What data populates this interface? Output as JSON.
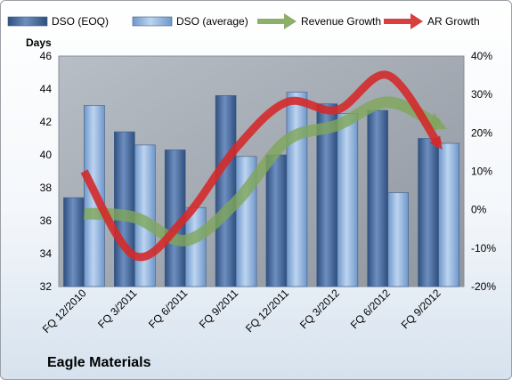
{
  "chart_data": {
    "type": "bar",
    "title": "",
    "company": "Eagle Materials",
    "ylabel": "Days",
    "categories": [
      "FQ 12/2010",
      "FQ 3/2011",
      "FQ 6/2011",
      "FQ 9/2011",
      "FQ 12/2011",
      "FQ 3/2012",
      "FQ 6/2012",
      "FQ 9/2012"
    ],
    "ylim": [
      32,
      46
    ],
    "yticks": [
      "32",
      "34",
      "36",
      "38",
      "40",
      "42",
      "44",
      "46"
    ],
    "y2lim": [
      -20,
      40
    ],
    "y2ticks": [
      "-20%",
      "-10%",
      "0%",
      "10%",
      "20%",
      "30%",
      "40%"
    ],
    "series": [
      {
        "name": "DSO (EOQ)",
        "type": "bar",
        "axis": "left",
        "color": "#4a6fa5",
        "values": [
          37.4,
          41.4,
          40.3,
          43.6,
          40.0,
          43.1,
          42.7,
          41.0
        ]
      },
      {
        "name": "DSO (average)",
        "type": "bar",
        "axis": "left",
        "color": "#8fb3de",
        "values": [
          43.0,
          40.6,
          36.8,
          39.9,
          43.8,
          42.5,
          37.7,
          40.7
        ]
      },
      {
        "name": "Revenue Growth",
        "type": "line",
        "axis": "right",
        "color": "#7fa65a",
        "values": [
          -1,
          -2,
          -8,
          2,
          18,
          22,
          28,
          22
        ]
      },
      {
        "name": "AR Growth",
        "type": "line",
        "axis": "right",
        "color": "#d42a2a",
        "values": [
          10,
          -12,
          -2,
          16,
          28,
          26,
          35,
          17
        ]
      }
    ],
    "grid": false,
    "legend": "top"
  }
}
